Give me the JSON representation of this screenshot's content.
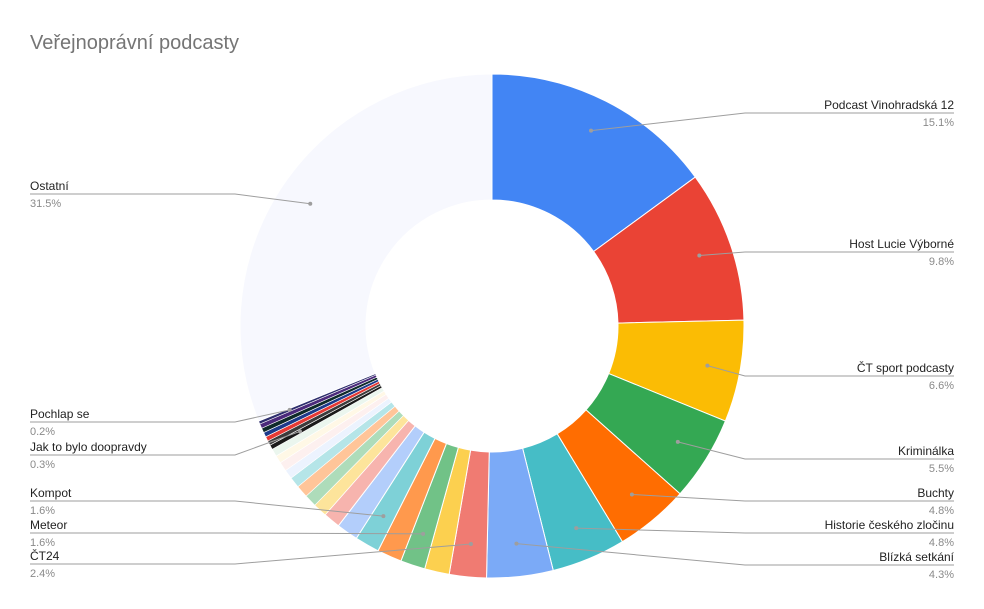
{
  "chart_data": {
    "type": "pie",
    "donut": true,
    "title": "Veřejnoprávní podcasty",
    "slices": [
      {
        "label": "Podcast Vinohradská 12",
        "value": 15.1,
        "pct_label": "15.1%",
        "color": "#4285f4",
        "show_label": true
      },
      {
        "label": "Host Lucie Výborné",
        "value": 9.8,
        "pct_label": "9.8%",
        "color": "#ea4335",
        "show_label": true
      },
      {
        "label": "ČT sport podcasty",
        "value": 6.6,
        "pct_label": "6.6%",
        "color": "#fbbc04",
        "show_label": true
      },
      {
        "label": "Kriminálka",
        "value": 5.5,
        "pct_label": "5.5%",
        "color": "#34a853",
        "show_label": true
      },
      {
        "label": "Buchty",
        "value": 4.8,
        "pct_label": "4.8%",
        "color": "#ff6d01",
        "show_label": true
      },
      {
        "label": "Historie českého zločinu",
        "value": 4.8,
        "pct_label": "4.8%",
        "color": "#46bdc6",
        "show_label": true
      },
      {
        "label": "Blízká setkání",
        "value": 4.3,
        "pct_label": "4.3%",
        "color": "#7baaf7",
        "show_label": true
      },
      {
        "label": "ČT24",
        "value": 2.4,
        "pct_label": "2.4%",
        "color": "#f07b72",
        "show_label": true
      },
      {
        "label": "",
        "value": 1.6,
        "color": "#fcd04f",
        "show_label": false
      },
      {
        "label": "Meteor",
        "value": 1.6,
        "pct_label": "1.6%",
        "color": "#71c287",
        "show_label": true
      },
      {
        "label": "",
        "value": 1.6,
        "color": "#ff994d",
        "show_label": false
      },
      {
        "label": "Kompot",
        "value": 1.6,
        "pct_label": "1.6%",
        "color": "#7ed1d7",
        "show_label": true
      },
      {
        "label": "",
        "value": 1.4,
        "color": "#b3cefb",
        "show_label": false
      },
      {
        "label": "",
        "value": 1.1,
        "color": "#f7b4ae",
        "show_label": false
      },
      {
        "label": "",
        "value": 0.9,
        "color": "#fde49b",
        "show_label": false
      },
      {
        "label": "",
        "value": 0.8,
        "color": "#aedcba",
        "show_label": false
      },
      {
        "label": "",
        "value": 0.8,
        "color": "#ffc599",
        "show_label": false
      },
      {
        "label": "",
        "value": 0.7,
        "color": "#b5e5e8",
        "show_label": false
      },
      {
        "label": "",
        "value": 0.6,
        "color": "#ecf3fe",
        "show_label": false
      },
      {
        "label": "",
        "value": 0.6,
        "color": "#fdf0ef",
        "show_label": false
      },
      {
        "label": "",
        "value": 0.5,
        "color": "#fff8e6",
        "show_label": false
      },
      {
        "label": "",
        "value": 0.5,
        "color": "#ebf6ee",
        "show_label": false
      },
      {
        "label": "Jak to bylo doopravdy",
        "value": 0.3,
        "pct_label": "0.3%",
        "color": "#1a1a1a",
        "show_label": true
      },
      {
        "label": "",
        "value": 0.3,
        "color": "#3b3b3b",
        "show_label": false
      },
      {
        "label": "",
        "value": 0.3,
        "color": "#e53935",
        "show_label": false
      },
      {
        "label": "",
        "value": 0.3,
        "color": "#1e3a8a",
        "show_label": false
      },
      {
        "label": "",
        "value": 0.3,
        "color": "#0f2a2a",
        "show_label": false
      },
      {
        "label": "",
        "value": 0.3,
        "color": "#4b2a7b",
        "show_label": false
      },
      {
        "label": "Pochlap se",
        "value": 0.2,
        "pct_label": "0.2%",
        "color": "#2d2d6d",
        "show_label": true
      },
      {
        "label": "Ostatní",
        "value": 31.5,
        "pct_label": "31.5%",
        "color": "#f7f8fe",
        "show_label": true
      }
    ]
  }
}
